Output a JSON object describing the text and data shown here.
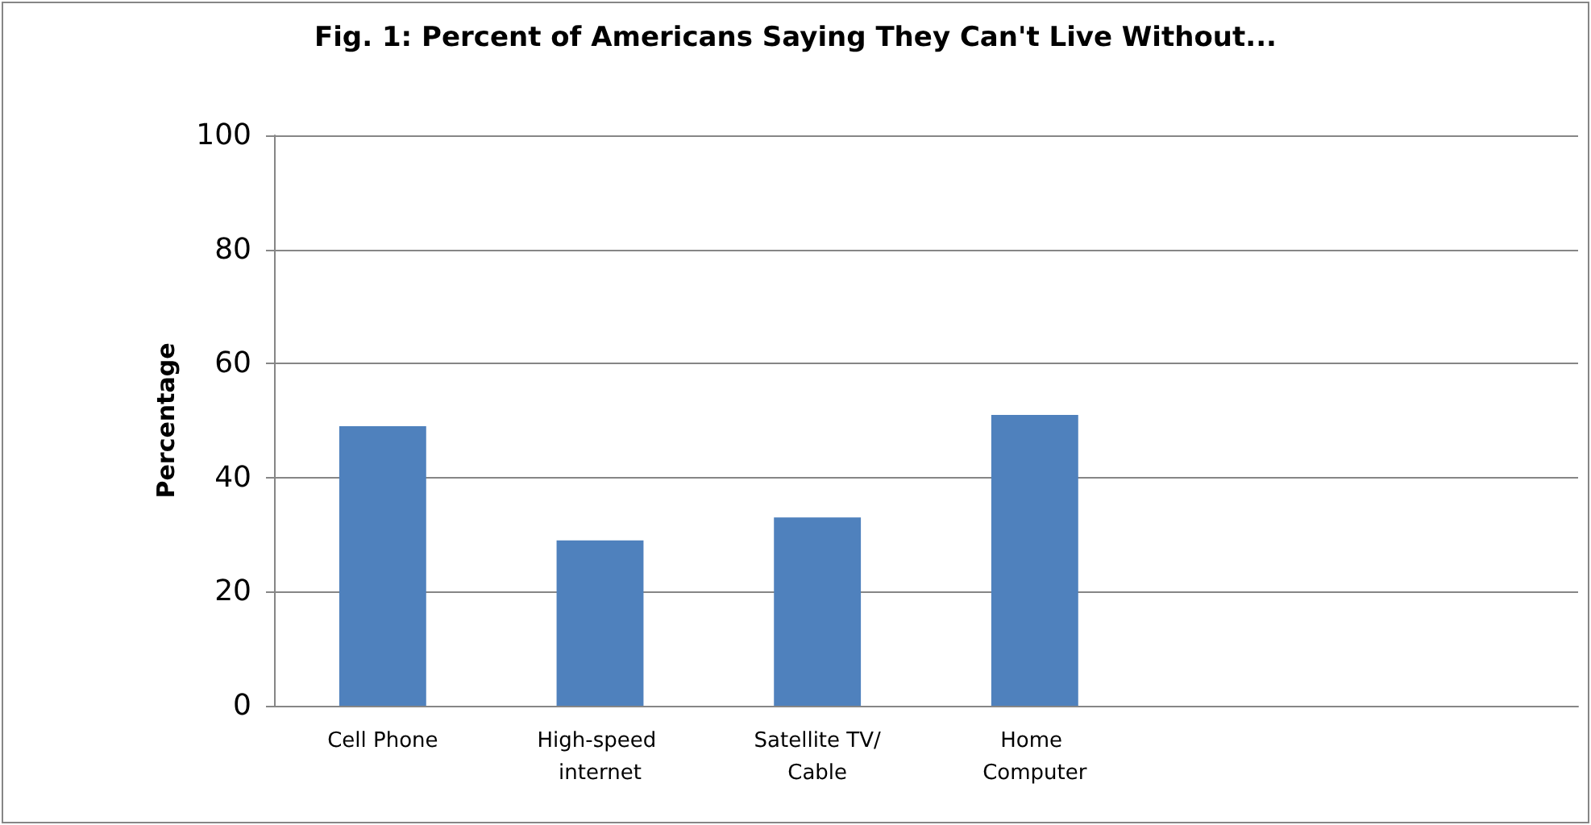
{
  "chart_data": {
    "type": "bar",
    "title": "Fig. 1: Percent of Americans Saying They Can't Live Without...",
    "ylabel": "Percentage",
    "categories": [
      "Cell Phone",
      "High-speed internet",
      "Satellite TV/Cable",
      "Home Computer",
      null,
      null
    ],
    "values": [
      49,
      29,
      33,
      51,
      null,
      null
    ],
    "color": "#4f81bd",
    "ylim": [
      0,
      100
    ],
    "yticks": [
      0,
      20,
      40,
      60,
      80,
      100
    ],
    "grid": "y"
  }
}
